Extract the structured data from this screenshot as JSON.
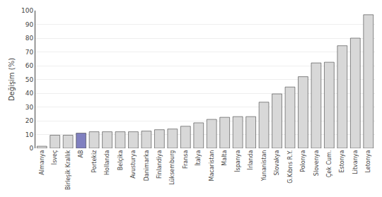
{
  "chart_data": {
    "type": "bar",
    "categories": [
      "Almanya",
      "İsveç",
      "Birleşik Krallık",
      "AB",
      "Portekiz",
      "Hollanda",
      "Belçika",
      "Avusturya",
      "Danimarka",
      "Finlandiya",
      "Lüksemburg",
      "Fransa",
      "İtalya",
      "Macaristan",
      "Malta",
      "İspanya",
      "İrlanda",
      "Yunanistan",
      "Slovakya",
      "G.Kıbrıs R.Y.",
      "Polonya",
      "Slovenya",
      "Çek Cum.",
      "Estonya",
      "Litvanya",
      "Letonya"
    ],
    "values": [
      1.5,
      9.5,
      9.5,
      11,
      12,
      12,
      12,
      12,
      12.5,
      13.5,
      14,
      16,
      18.5,
      21,
      22.5,
      23,
      23,
      33.5,
      39.5,
      44.5,
      52,
      62,
      62.5,
      74.5,
      80,
      97
    ],
    "colors": [
      "#d8d8d8",
      "#d8d8d8",
      "#d8d8d8",
      "#8080c0",
      "#d8d8d8",
      "#d8d8d8",
      "#d8d8d8",
      "#d8d8d8",
      "#d8d8d8",
      "#d8d8d8",
      "#d8d8d8",
      "#d8d8d8",
      "#d8d8d8",
      "#d8d8d8",
      "#d8d8d8",
      "#d8d8d8",
      "#d8d8d8",
      "#d8d8d8",
      "#d8d8d8",
      "#d8d8d8",
      "#d8d8d8",
      "#d8d8d8",
      "#d8d8d8",
      "#d8d8d8",
      "#d8d8d8",
      "#d8d8d8"
    ],
    "ylabel": "Değişim (%)",
    "ylim": [
      0,
      100
    ],
    "yticks": [
      0,
      10,
      20,
      30,
      40,
      50,
      60,
      70,
      80,
      90,
      100
    ],
    "grid": true
  }
}
